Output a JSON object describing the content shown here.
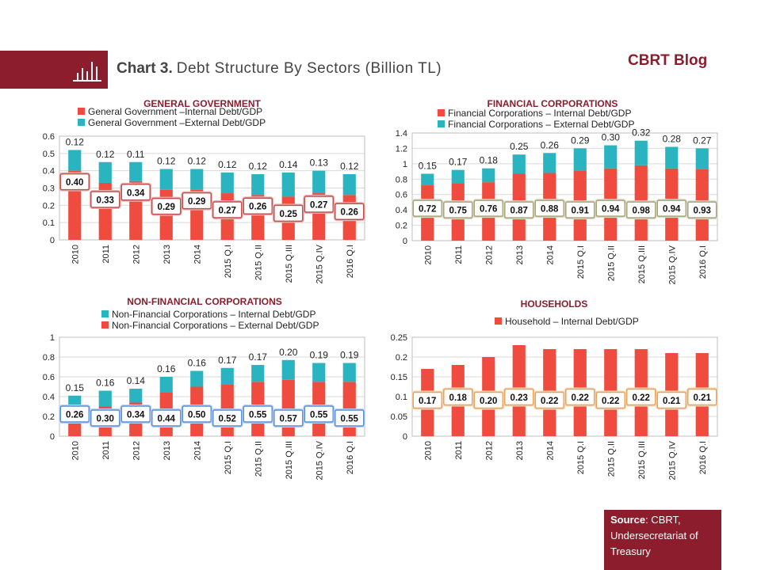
{
  "header": {
    "title_bold": "Chart 3.",
    "title_rest": "Debt Structure By Sectors (Billion TL)",
    "blog_label": "CBRT Blog"
  },
  "source": {
    "label": "Source",
    "text": ": CBRT, Undersecretariat of Treasury"
  },
  "colors": {
    "internal": "#ef4b3e",
    "external": "#2ab4c0",
    "brand": "#8b1d2c"
  },
  "chart_data": [
    {
      "type": "bar",
      "stacked": true,
      "title": "GENERAL GOVERNMENT",
      "categories": [
        "2010",
        "2011",
        "2012",
        "2013",
        "2014",
        "2015 Q.I",
        "2015 Q.II",
        "2015 Q.III",
        "2015 Q.IV",
        "2016 Q.I"
      ],
      "series": [
        {
          "name": "General Government –Internal Debt/GDP",
          "color": "#ef4b3e",
          "values": [
            0.4,
            0.33,
            0.34,
            0.29,
            0.29,
            0.27,
            0.26,
            0.25,
            0.27,
            0.26
          ],
          "labels": [
            "0.40",
            "0.33",
            "0.34",
            "0.29",
            "0.29",
            "0.27",
            "0.26",
            "0.25",
            "0.27",
            "0.26"
          ]
        },
        {
          "name": "General Government –External Debt/GDP",
          "color": "#2ab4c0",
          "values": [
            0.12,
            0.12,
            0.11,
            0.12,
            0.12,
            0.12,
            0.12,
            0.14,
            0.13,
            0.12
          ],
          "labels": [
            "0.12",
            "0.12",
            "0.11",
            "0.12",
            "0.12",
            "0.12",
            "0.12",
            "0.14",
            "0.13",
            "0.12"
          ]
        }
      ],
      "legend_order": [
        0,
        1
      ],
      "ylim": [
        0,
        0.6
      ],
      "yticks": [
        "0",
        "0.1",
        "0.2",
        "0.3",
        "0.4",
        "0.5",
        "0.6"
      ],
      "box_style": "red",
      "grid": true,
      "legend": "top"
    },
    {
      "type": "bar",
      "stacked": true,
      "title": "FINANCIAL CORPORATIONS",
      "categories": [
        "2010",
        "2011",
        "2012",
        "2013",
        "2014",
        "2015 Q.I",
        "2015 Q.II",
        "2015 Q.III",
        "2015 Q.IV",
        "2016 Q.I"
      ],
      "series": [
        {
          "name": "Financial Corporations – Internal Debt/GDP",
          "color": "#ef4b3e",
          "values": [
            0.72,
            0.75,
            0.76,
            0.87,
            0.88,
            0.91,
            0.94,
            0.98,
            0.94,
            0.93
          ],
          "labels": [
            "0.72",
            "0.75",
            "0.76",
            "0.87",
            "0.88",
            "0.91",
            "0.94",
            "0.98",
            "0.94",
            "0.93"
          ]
        },
        {
          "name": "Financial Corporations – External Debt/GDP",
          "color": "#2ab4c0",
          "values": [
            0.15,
            0.17,
            0.18,
            0.25,
            0.26,
            0.29,
            0.3,
            0.32,
            0.28,
            0.27
          ],
          "labels": [
            "0.15",
            "0.17",
            "0.18",
            "0.25",
            "0.26",
            "0.29",
            "0.30",
            "0.32",
            "0.28",
            "0.27"
          ]
        }
      ],
      "legend_order": [
        0,
        1
      ],
      "ylim": [
        0,
        1.4
      ],
      "yticks": [
        "0",
        "0.2",
        "0.4",
        "0.6",
        "0.8",
        "1",
        "1.2",
        "1.4"
      ],
      "box_style": "olive",
      "grid": true,
      "legend": "top"
    },
    {
      "type": "bar",
      "stacked": true,
      "title": "NON-FINANCIAL CORPORATIONS",
      "categories": [
        "2010",
        "2011",
        "2012",
        "2013",
        "2014",
        "2015 Q.I",
        "2015 Q.II",
        "2015 Q.III",
        "2015 Q.IV",
        "2016 Q.I"
      ],
      "series": [
        {
          "name": "Non-Financial Corporations – External Debt/GDP",
          "color": "#ef4b3e",
          "values": [
            0.26,
            0.3,
            0.34,
            0.44,
            0.5,
            0.52,
            0.55,
            0.57,
            0.55,
            0.55
          ],
          "labels": [
            "0.26",
            "0.30",
            "0.34",
            "0.44",
            "0.50",
            "0.52",
            "0.55",
            "0.57",
            "0.55",
            "0.55"
          ]
        },
        {
          "name": "Non-Financial Corporations – Internal Debt/GDP",
          "color": "#2ab4c0",
          "values": [
            0.15,
            0.16,
            0.14,
            0.16,
            0.16,
            0.17,
            0.17,
            0.2,
            0.19,
            0.19
          ],
          "labels": [
            "0.15",
            "0.16",
            "0.14",
            "0.16",
            "0.16",
            "0.17",
            "0.17",
            "0.20",
            "0.19",
            "0.19"
          ]
        }
      ],
      "legend_order": [
        1,
        0
      ],
      "ylim": [
        0,
        1
      ],
      "yticks": [
        "0",
        "0.2",
        "0.4",
        "0.6",
        "0.8",
        "1"
      ],
      "box_style": "blue",
      "grid": true,
      "legend": "top"
    },
    {
      "type": "bar",
      "stacked": false,
      "title": "HOUSEHOLDS",
      "categories": [
        "2010",
        "2011",
        "2012",
        "2013",
        "2014",
        "2015 Q.I",
        "2015 Q.II",
        "2015 Q.III",
        "2015 Q.IV",
        "2016 Q.I"
      ],
      "series": [
        {
          "name": "Household –  Internal Debt/GDP",
          "color": "#ef4b3e",
          "values": [
            0.17,
            0.18,
            0.2,
            0.23,
            0.22,
            0.22,
            0.22,
            0.22,
            0.21,
            0.21
          ],
          "labels": [
            "0.17",
            "0.18",
            "0.20",
            "0.23",
            "0.22",
            "0.22",
            "0.22",
            "0.22",
            "0.21",
            "0.21"
          ]
        }
      ],
      "legend_order": [
        0
      ],
      "ylim": [
        0,
        0.25
      ],
      "yticks": [
        "0",
        "0.05",
        "0.1",
        "0.15",
        "0.2",
        "0.25"
      ],
      "box_style": "orange",
      "grid": true,
      "legend": "top"
    }
  ]
}
